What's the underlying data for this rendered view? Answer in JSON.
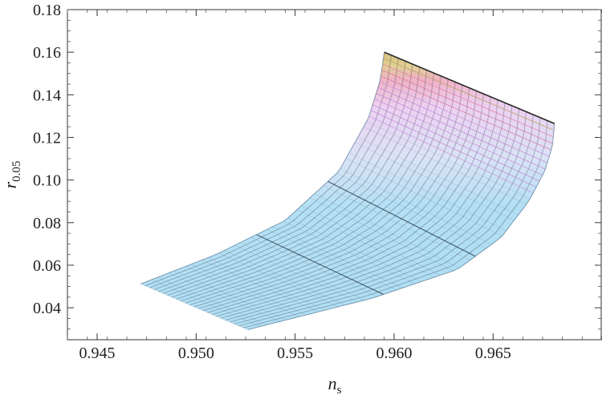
{
  "chart_data": {
    "type": "area",
    "title": "",
    "xlabel": {
      "base": "n",
      "sub": "s"
    },
    "ylabel": {
      "base": "r",
      "sub": "0.05"
    },
    "xlim": [
      0.9435,
      0.9705
    ],
    "ylim": [
      0.025,
      0.18
    ],
    "x_ticks": [
      0.945,
      0.95,
      0.955,
      0.96,
      0.965
    ],
    "x_tick_labels": [
      "0.945",
      "0.950",
      "0.955",
      "0.960",
      "0.965"
    ],
    "y_ticks": [
      0.04,
      0.06,
      0.08,
      0.1,
      0.12,
      0.14,
      0.16,
      0.18
    ],
    "y_tick_labels": [
      "0.04",
      "0.06",
      "0.08",
      "0.10",
      "0.12",
      "0.14",
      "0.16",
      "0.18"
    ],
    "surface": {
      "corners": {
        "low_left": [
          0.9472,
          0.0512
        ],
        "low_right": [
          0.9526,
          0.0297
        ],
        "top_left": [
          0.9595,
          0.16
        ],
        "top_right": [
          0.9681,
          0.1265
        ]
      },
      "left_edge": [
        [
          0.9472,
          0.0512
        ],
        [
          0.951,
          0.065
        ],
        [
          0.9545,
          0.081
        ],
        [
          0.9572,
          0.104
        ],
        [
          0.9587,
          0.129
        ],
        [
          0.9593,
          0.147
        ],
        [
          0.9595,
          0.16
        ]
      ],
      "right_edge": [
        [
          0.9526,
          0.0297
        ],
        [
          0.9589,
          0.0445
        ],
        [
          0.9632,
          0.058
        ],
        [
          0.9654,
          0.073
        ],
        [
          0.9668,
          0.09
        ],
        [
          0.9676,
          0.104
        ],
        [
          0.968,
          0.116
        ],
        [
          0.9681,
          0.1265
        ]
      ],
      "grid_lines": 24,
      "colors": {
        "base": "#8ccfee",
        "mid": "#dca6e6",
        "top": "#e88aa8",
        "peak": "#c8b060",
        "line": "#3a4a5a"
      }
    }
  }
}
